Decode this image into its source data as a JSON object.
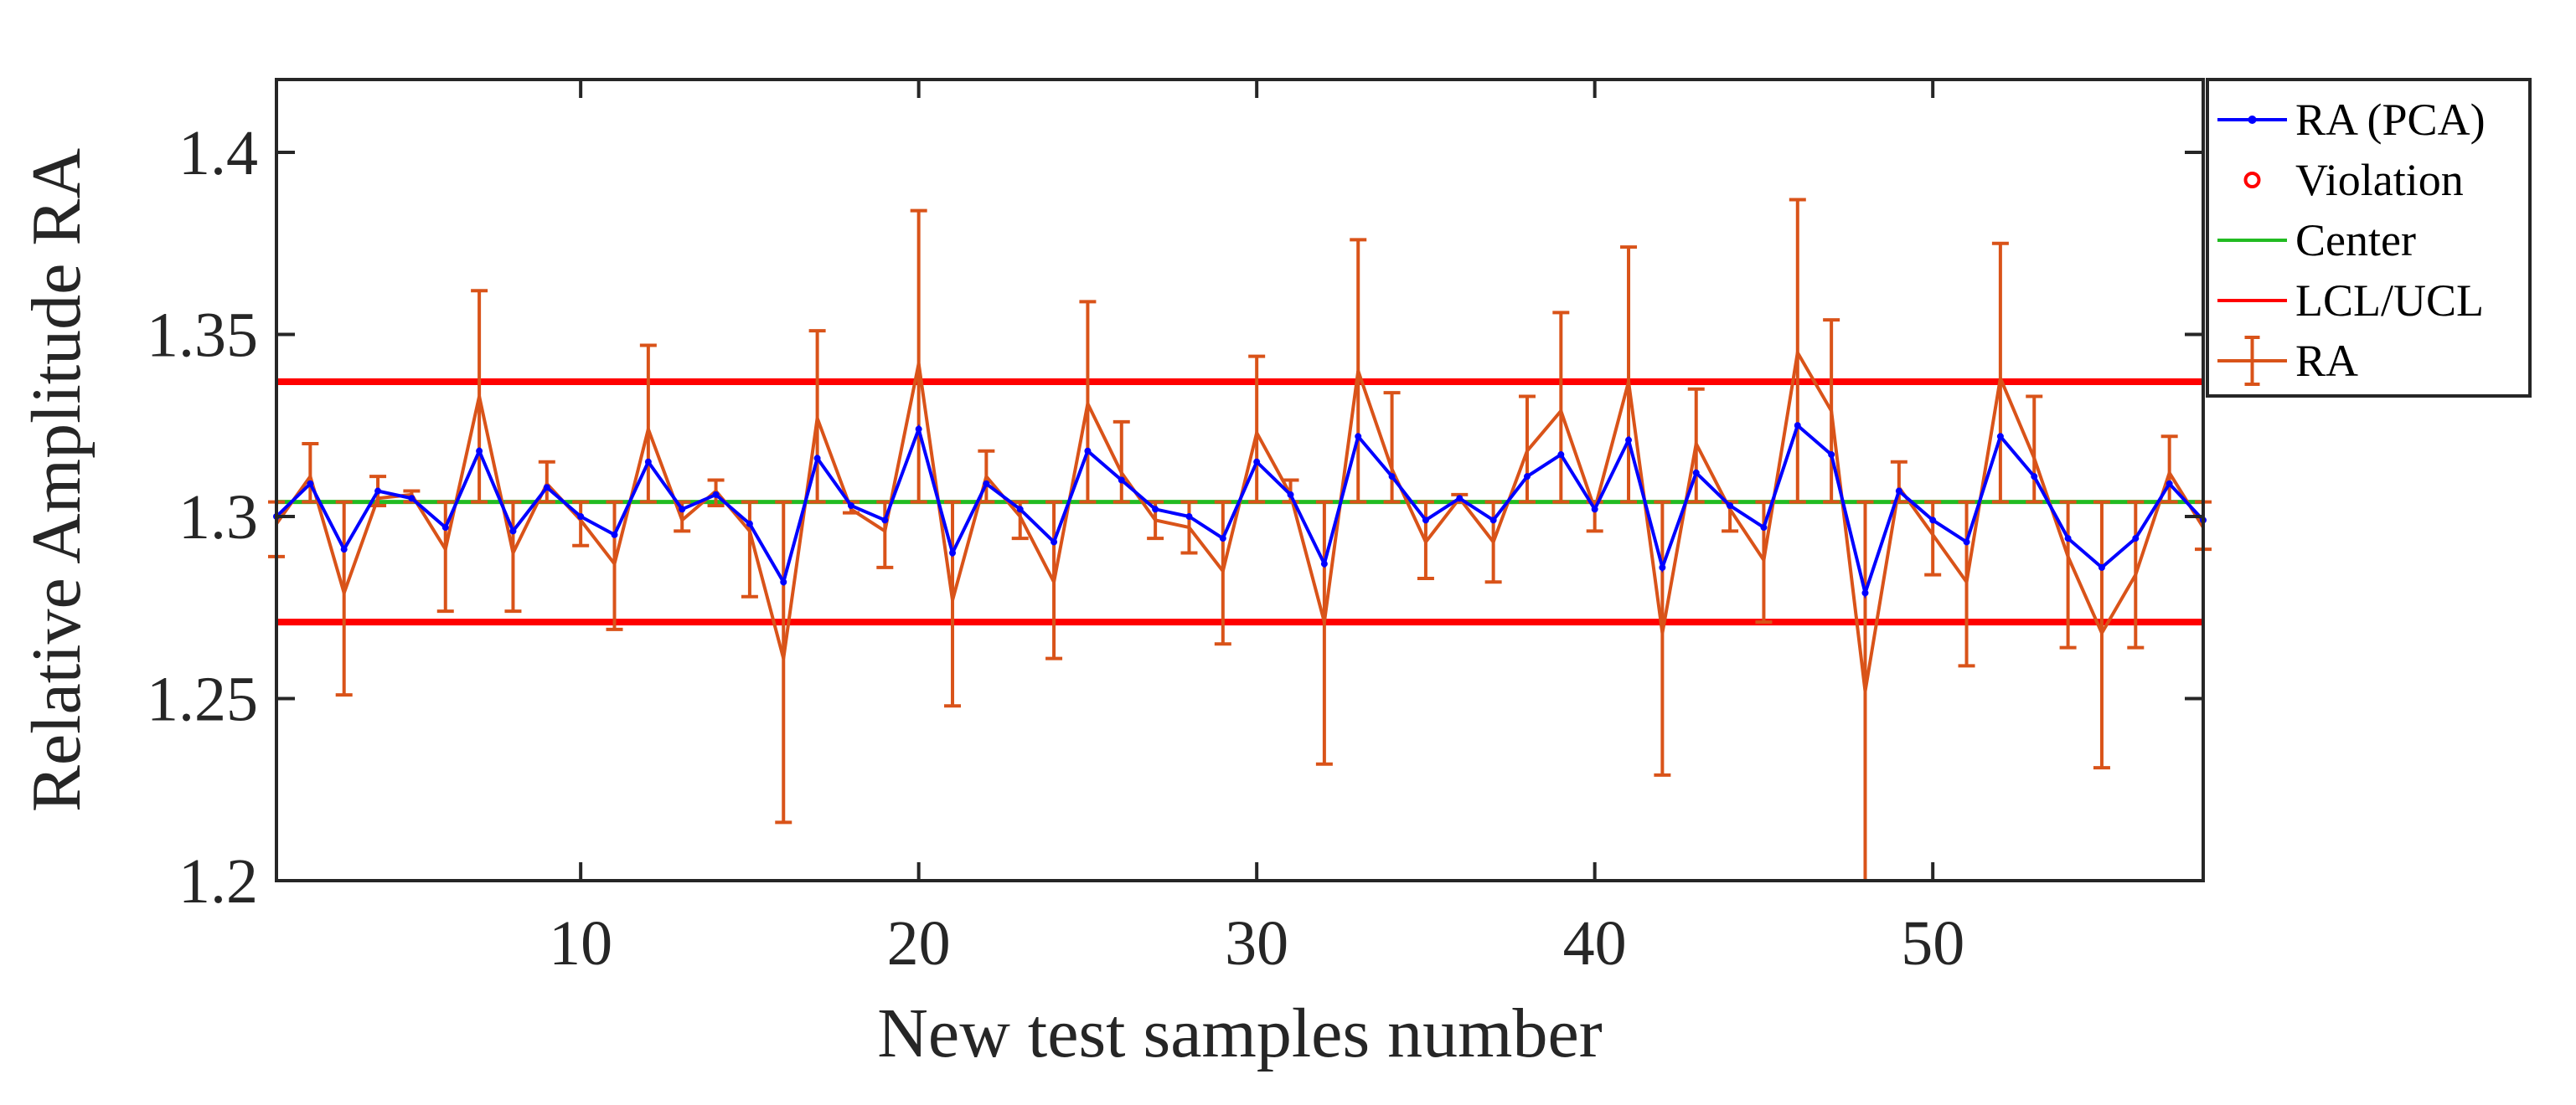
{
  "chart_data": {
    "type": "line",
    "title": "",
    "xlabel": "New test samples number",
    "ylabel": "Relative Amplitude RA",
    "xlim": [
      1,
      58
    ],
    "ylim": [
      1.2,
      1.42
    ],
    "xticks": [
      10,
      20,
      30,
      40,
      50
    ],
    "yticks": [
      1.2,
      1.25,
      1.3,
      1.35,
      1.4
    ],
    "xtick_labels": [
      "10",
      "20",
      "30",
      "40",
      "50"
    ],
    "ytick_labels": [
      "1.2",
      "1.25",
      "1.3",
      "1.35",
      "1.4"
    ],
    "center": 1.304,
    "lcl": 1.271,
    "ucl": 1.337,
    "x": [
      1,
      2,
      3,
      4,
      5,
      6,
      7,
      8,
      9,
      10,
      11,
      12,
      13,
      14,
      15,
      16,
      17,
      18,
      19,
      20,
      21,
      22,
      23,
      24,
      25,
      26,
      27,
      28,
      29,
      30,
      31,
      32,
      33,
      34,
      35,
      36,
      37,
      38,
      39,
      40,
      41,
      42,
      43,
      44,
      45,
      46,
      47,
      48,
      49,
      50,
      51,
      52,
      53,
      54,
      55,
      56,
      57,
      58
    ],
    "series": [
      {
        "name": "RA (PCA)",
        "color": "#0000ff",
        "values": [
          1.3,
          1.309,
          1.291,
          1.307,
          1.305,
          1.297,
          1.318,
          1.296,
          1.308,
          1.3,
          1.295,
          1.315,
          1.302,
          1.306,
          1.298,
          1.282,
          1.316,
          1.303,
          1.299,
          1.324,
          1.29,
          1.309,
          1.302,
          1.293,
          1.318,
          1.31,
          1.302,
          1.3,
          1.294,
          1.315,
          1.306,
          1.287,
          1.322,
          1.311,
          1.299,
          1.305,
          1.299,
          1.311,
          1.317,
          1.302,
          1.321,
          1.286,
          1.312,
          1.303,
          1.297,
          1.325,
          1.317,
          1.279,
          1.307,
          1.299,
          1.293,
          1.322,
          1.311,
          1.294,
          1.286,
          1.294,
          1.309,
          1.299
        ]
      },
      {
        "name": "RA",
        "color": "#d95319",
        "values": [
          1.298,
          1.311,
          1.279,
          1.305,
          1.306,
          1.291,
          1.333,
          1.29,
          1.309,
          1.299,
          1.287,
          1.324,
          1.299,
          1.307,
          1.296,
          1.261,
          1.327,
          1.302,
          1.296,
          1.342,
          1.277,
          1.311,
          1.3,
          1.282,
          1.331,
          1.312,
          1.299,
          1.297,
          1.285,
          1.323,
          1.306,
          1.271,
          1.34,
          1.313,
          1.293,
          1.305,
          1.293,
          1.318,
          1.329,
          1.302,
          1.337,
          1.268,
          1.32,
          1.302,
          1.288,
          1.345,
          1.329,
          1.252,
          1.308,
          1.295,
          1.282,
          1.338,
          1.316,
          1.289,
          1.268,
          1.284,
          1.312,
          1.297
        ],
        "err_low": [
          1.289,
          1.304,
          1.251,
          1.303,
          1.304,
          1.274,
          1.304,
          1.274,
          1.304,
          1.292,
          1.269,
          1.304,
          1.296,
          1.303,
          1.278,
          1.216,
          1.304,
          1.301,
          1.286,
          1.304,
          1.248,
          1.304,
          1.294,
          1.261,
          1.304,
          1.304,
          1.294,
          1.29,
          1.265,
          1.304,
          1.304,
          1.232,
          1.304,
          1.304,
          1.283,
          1.304,
          1.282,
          1.304,
          1.304,
          1.296,
          1.304,
          1.229,
          1.304,
          1.296,
          1.271,
          1.304,
          1.304,
          1.2,
          1.304,
          1.284,
          1.259,
          1.304,
          1.304,
          1.264,
          1.231,
          1.264,
          1.304,
          1.291
        ],
        "err_high": [
          1.304,
          1.32,
          1.304,
          1.311,
          1.307,
          1.304,
          1.362,
          1.304,
          1.315,
          1.304,
          1.304,
          1.347,
          1.304,
          1.31,
          1.304,
          1.304,
          1.351,
          1.304,
          1.304,
          1.384,
          1.304,
          1.318,
          1.304,
          1.304,
          1.359,
          1.326,
          1.304,
          1.304,
          1.304,
          1.344,
          1.31,
          1.304,
          1.376,
          1.334,
          1.304,
          1.306,
          1.304,
          1.333,
          1.356,
          1.304,
          1.374,
          1.304,
          1.335,
          1.304,
          1.304,
          1.387,
          1.354,
          1.304,
          1.315,
          1.304,
          1.304,
          1.375,
          1.333,
          1.304,
          1.304,
          1.304,
          1.322,
          1.304
        ]
      }
    ],
    "legend": {
      "placement": "outside-top-right",
      "items": [
        {
          "label": "RA (PCA)",
          "color": "#0000ff",
          "style": "line-dot"
        },
        {
          "label": "Violation",
          "color": "#ff0000",
          "style": "circle"
        },
        {
          "label": "Center",
          "color": "#22bb22",
          "style": "line"
        },
        {
          "label": "LCL/UCL",
          "color": "#ff0000",
          "style": "line"
        },
        {
          "label": "RA",
          "color": "#d95319",
          "style": "errorbar"
        }
      ]
    },
    "colors": {
      "center": "#22bb22",
      "limits": "#ff0000",
      "axes": "#262626"
    }
  }
}
